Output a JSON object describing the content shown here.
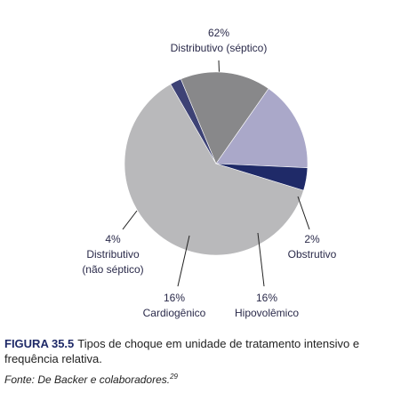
{
  "chart_data": {
    "type": "pie",
    "categories": [
      "Distributivo (séptico)",
      "Obstrutivo",
      "Hipovolêmico",
      "Cardiogênico",
      "Distributivo (não séptico)"
    ],
    "values": [
      62,
      2,
      16,
      16,
      4
    ],
    "value_labels": [
      "62%",
      "2%",
      "16%",
      "16%",
      "4%"
    ],
    "colors": [
      "#b9b9bb",
      "#3d4275",
      "#88888a",
      "#aaa8c9",
      "#1f2a68"
    ]
  },
  "caption": {
    "label": "FIGURA 35.5",
    "text": "Tipos de choque em unidade de tratamento intensivo e frequência relativa."
  },
  "source": {
    "text": "Fonte: De Backer e colaboradores.",
    "ref": "29"
  }
}
